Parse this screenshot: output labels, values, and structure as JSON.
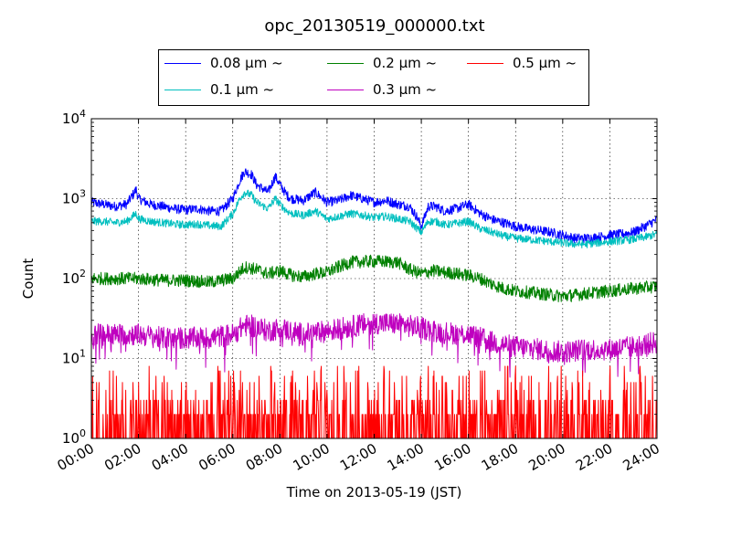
{
  "chart_data": {
    "type": "line",
    "title": "opc_20130519_000000.txt",
    "xlabel": "Time on 2013-05-19 (JST)",
    "ylabel": "Count",
    "x_tick_labels": [
      "00:00",
      "02:00",
      "04:00",
      "06:00",
      "08:00",
      "10:00",
      "12:00",
      "14:00",
      "16:00",
      "18:00",
      "20:00",
      "22:00",
      "24:00"
    ],
    "y_tick_labels": [
      {
        "base": "10",
        "exp": "0"
      },
      {
        "base": "10",
        "exp": "1"
      },
      {
        "base": "10",
        "exp": "2"
      },
      {
        "base": "10",
        "exp": "3"
      },
      {
        "base": "10",
        "exp": "4"
      }
    ],
    "xlim_hours": [
      0,
      24
    ],
    "ylim": [
      1,
      10000
    ],
    "yscale": "log",
    "grid": true,
    "legend_position": "top-center",
    "series": [
      {
        "name": "0.08 μm ~",
        "label_size": "0.08",
        "color": "#0000ff",
        "x_hours": [
          0,
          0.5,
          1,
          1.5,
          1.9,
          2,
          2.5,
          3,
          3.5,
          4,
          4.5,
          5,
          5.5,
          6,
          6.3,
          6.5,
          6.8,
          7,
          7.5,
          7.8,
          8,
          8.3,
          8.5,
          9,
          9.5,
          10,
          10.5,
          11,
          11.5,
          12,
          12.5,
          13,
          13.5,
          13.8,
          14,
          14.3,
          14.6,
          15,
          15.5,
          16,
          16.5,
          17,
          17.5,
          18,
          18.5,
          19,
          19.5,
          20,
          20.5,
          21,
          21.5,
          22,
          22.5,
          23,
          23.5,
          24
        ],
        "values": [
          900,
          850,
          800,
          850,
          1300,
          1000,
          850,
          800,
          750,
          720,
          750,
          700,
          700,
          1000,
          1700,
          2200,
          2000,
          1500,
          1200,
          1900,
          1500,
          1100,
          1000,
          950,
          1200,
          900,
          950,
          1100,
          1000,
          900,
          950,
          850,
          800,
          600,
          450,
          800,
          800,
          700,
          750,
          850,
          650,
          550,
          500,
          450,
          420,
          400,
          380,
          350,
          320,
          320,
          330,
          350,
          360,
          380,
          450,
          550
        ]
      },
      {
        "name": "0.1 μm ~",
        "label_size": "0.1",
        "color": "#00bfbf",
        "x_hours": [
          0,
          0.5,
          1,
          1.5,
          1.9,
          2,
          2.5,
          3,
          3.5,
          4,
          4.5,
          5,
          5.5,
          6,
          6.3,
          6.5,
          6.8,
          7,
          7.5,
          7.8,
          8,
          8.3,
          8.5,
          9,
          9.5,
          10,
          10.5,
          11,
          11.5,
          12,
          12.5,
          13,
          13.5,
          13.8,
          14,
          14.3,
          14.6,
          15,
          15.5,
          16,
          16.5,
          17,
          17.5,
          18,
          18.5,
          19,
          19.5,
          20,
          20.5,
          21,
          21.5,
          22,
          22.5,
          23,
          23.5,
          24
        ],
        "values": [
          520,
          520,
          500,
          520,
          650,
          560,
          520,
          500,
          480,
          470,
          480,
          460,
          450,
          650,
          1000,
          1200,
          1100,
          900,
          750,
          1000,
          850,
          700,
          650,
          620,
          700,
          560,
          600,
          650,
          620,
          580,
          600,
          560,
          520,
          430,
          380,
          520,
          520,
          470,
          490,
          520,
          420,
          380,
          340,
          320,
          310,
          300,
          290,
          280,
          270,
          270,
          280,
          290,
          300,
          310,
          330,
          360
        ]
      },
      {
        "name": "0.2 μm ~",
        "label_size": "0.2",
        "color": "#008000",
        "x_hours": [
          0,
          1,
          2,
          3,
          4,
          5,
          6,
          6.5,
          7,
          7.5,
          8,
          8.5,
          9,
          9.5,
          10,
          10.5,
          11,
          12,
          13,
          13.5,
          14,
          14.5,
          15,
          16,
          16.5,
          17,
          17.5,
          18,
          19,
          20,
          21,
          22,
          23,
          24
        ],
        "values": [
          100,
          100,
          100,
          95,
          95,
          90,
          100,
          140,
          130,
          115,
          125,
          110,
          105,
          115,
          120,
          140,
          160,
          165,
          160,
          130,
          115,
          125,
          120,
          110,
          100,
          85,
          75,
          70,
          65,
          60,
          65,
          70,
          75,
          80
        ]
      },
      {
        "name": "0.3 μm ~",
        "label_size": "0.3",
        "color": "#bf00bf",
        "x_hours": [
          0,
          1,
          2,
          3,
          4,
          5,
          6,
          6.5,
          7,
          7.5,
          8,
          8.5,
          9,
          9.5,
          10,
          11,
          12,
          13,
          14,
          15,
          16,
          16.5,
          17,
          18,
          19,
          20,
          21,
          22,
          23,
          24
        ],
        "values": [
          20,
          20,
          20,
          18,
          18,
          18,
          20,
          26,
          25,
          22,
          24,
          22,
          20,
          21,
          22,
          25,
          28,
          27,
          24,
          21,
          20,
          18,
          16,
          14,
          13,
          12,
          13,
          13,
          14,
          16
        ]
      },
      {
        "name": "0.5 μm ~",
        "label_size": "0.5",
        "color": "#ff0000",
        "x_hours": [
          0,
          2,
          4,
          6,
          8,
          10,
          12,
          14,
          16,
          18,
          20,
          22,
          24
        ],
        "values": [
          2,
          2,
          2,
          2,
          2,
          2,
          2,
          2,
          2,
          2,
          2,
          2,
          2
        ]
      }
    ]
  }
}
